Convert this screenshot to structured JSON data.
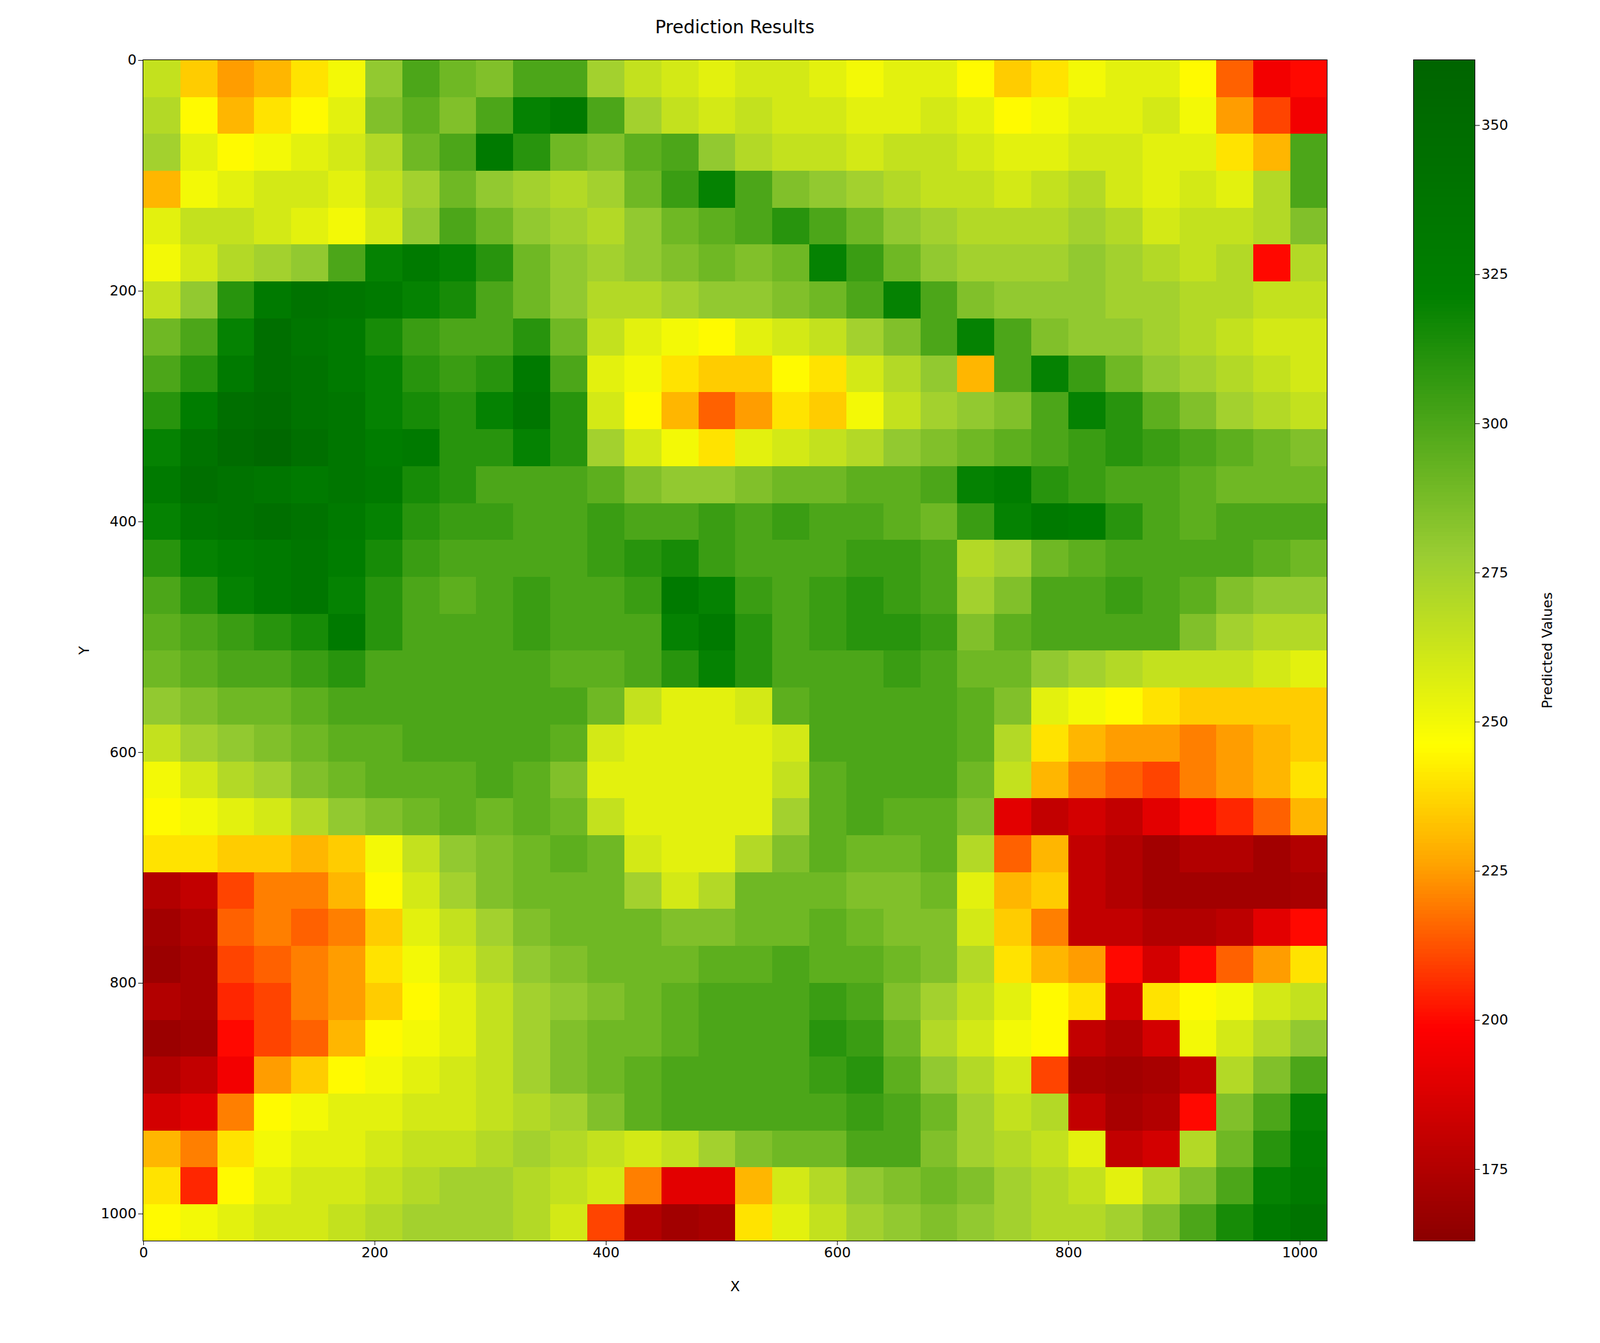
{
  "chart_data": {
    "type": "heatmap",
    "title": "Prediction Results",
    "x_label": "X",
    "y_label": "Y",
    "x": [
      16,
      48,
      80,
      112,
      144,
      176,
      208,
      240,
      272,
      304,
      336,
      368,
      400,
      432,
      464,
      496,
      528,
      560,
      592,
      624,
      656,
      688,
      720,
      752,
      784,
      816,
      848,
      880,
      912,
      944,
      976,
      1008
    ],
    "y": [
      16,
      48,
      80,
      112,
      144,
      176,
      208,
      240,
      272,
      304,
      336,
      368,
      400,
      432,
      464,
      496,
      528,
      560,
      592,
      624,
      656,
      688,
      720,
      752,
      784,
      816,
      848,
      880,
      912,
      944,
      976,
      1008
    ],
    "values": [
      [
        265,
        235,
        225,
        230,
        240,
        250,
        280,
        300,
        290,
        285,
        300,
        300,
        275,
        265,
        260,
        255,
        260,
        260,
        255,
        250,
        255,
        255,
        245,
        235,
        240,
        250,
        255,
        255,
        245,
        215,
        195,
        200
      ],
      [
        270,
        245,
        230,
        240,
        245,
        255,
        285,
        295,
        285,
        300,
        320,
        330,
        300,
        275,
        265,
        260,
        265,
        260,
        260,
        255,
        255,
        260,
        255,
        245,
        250,
        255,
        255,
        260,
        250,
        225,
        210,
        195
      ],
      [
        275,
        255,
        245,
        250,
        255,
        260,
        270,
        290,
        300,
        330,
        310,
        290,
        285,
        295,
        300,
        280,
        270,
        265,
        265,
        260,
        265,
        265,
        260,
        255,
        255,
        260,
        260,
        255,
        255,
        240,
        230,
        300
      ],
      [
        230,
        250,
        255,
        260,
        260,
        255,
        265,
        275,
        290,
        280,
        275,
        270,
        275,
        290,
        305,
        320,
        300,
        285,
        280,
        275,
        270,
        265,
        265,
        260,
        265,
        270,
        260,
        255,
        260,
        255,
        270,
        300
      ],
      [
        255,
        265,
        265,
        260,
        255,
        250,
        260,
        280,
        300,
        290,
        280,
        275,
        270,
        280,
        290,
        295,
        300,
        310,
        300,
        290,
        280,
        275,
        270,
        270,
        270,
        275,
        270,
        260,
        265,
        265,
        270,
        285
      ],
      [
        250,
        260,
        270,
        275,
        280,
        300,
        320,
        330,
        320,
        310,
        290,
        280,
        275,
        280,
        285,
        290,
        285,
        290,
        320,
        305,
        290,
        280,
        275,
        275,
        275,
        280,
        275,
        270,
        265,
        270,
        200,
        270
      ],
      [
        265,
        280,
        310,
        330,
        340,
        335,
        330,
        320,
        315,
        300,
        290,
        280,
        270,
        270,
        275,
        280,
        280,
        285,
        290,
        300,
        320,
        300,
        285,
        280,
        280,
        280,
        275,
        275,
        270,
        270,
        265,
        265
      ],
      [
        290,
        300,
        320,
        345,
        335,
        330,
        315,
        305,
        300,
        300,
        310,
        290,
        265,
        255,
        250,
        245,
        255,
        260,
        265,
        275,
        285,
        300,
        320,
        300,
        285,
        280,
        280,
        275,
        270,
        265,
        260,
        260
      ],
      [
        300,
        310,
        330,
        345,
        340,
        330,
        320,
        310,
        305,
        310,
        330,
        300,
        255,
        250,
        240,
        235,
        235,
        245,
        240,
        260,
        270,
        280,
        230,
        300,
        320,
        305,
        290,
        280,
        275,
        270,
        265,
        260
      ],
      [
        310,
        325,
        345,
        350,
        340,
        335,
        320,
        315,
        310,
        320,
        335,
        310,
        260,
        245,
        230,
        215,
        225,
        240,
        235,
        250,
        265,
        275,
        280,
        285,
        300,
        320,
        310,
        295,
        285,
        275,
        270,
        265
      ],
      [
        320,
        340,
        350,
        355,
        345,
        335,
        325,
        330,
        310,
        310,
        320,
        310,
        275,
        260,
        250,
        240,
        255,
        260,
        265,
        270,
        280,
        285,
        290,
        295,
        300,
        305,
        310,
        305,
        300,
        295,
        290,
        285
      ],
      [
        330,
        345,
        340,
        335,
        330,
        335,
        330,
        315,
        310,
        300,
        300,
        300,
        295,
        285,
        280,
        280,
        285,
        290,
        290,
        295,
        295,
        300,
        320,
        325,
        310,
        305,
        300,
        300,
        295,
        290,
        290,
        290
      ],
      [
        320,
        335,
        340,
        345,
        340,
        330,
        320,
        310,
        305,
        305,
        300,
        300,
        305,
        300,
        300,
        305,
        300,
        305,
        300,
        300,
        295,
        290,
        305,
        320,
        330,
        325,
        310,
        300,
        295,
        300,
        300,
        300
      ],
      [
        310,
        320,
        325,
        330,
        335,
        325,
        315,
        305,
        300,
        300,
        300,
        300,
        305,
        310,
        315,
        305,
        300,
        300,
        300,
        305,
        305,
        300,
        270,
        275,
        290,
        295,
        300,
        300,
        300,
        300,
        295,
        290
      ],
      [
        300,
        310,
        320,
        330,
        335,
        320,
        310,
        300,
        295,
        300,
        305,
        300,
        300,
        305,
        330,
        320,
        305,
        300,
        305,
        310,
        305,
        300,
        275,
        285,
        300,
        300,
        305,
        300,
        295,
        285,
        280,
        280
      ],
      [
        295,
        300,
        305,
        310,
        315,
        330,
        310,
        300,
        300,
        300,
        305,
        300,
        300,
        300,
        320,
        330,
        310,
        300,
        305,
        310,
        310,
        305,
        285,
        295,
        300,
        300,
        300,
        300,
        285,
        275,
        270,
        270
      ],
      [
        290,
        295,
        300,
        300,
        305,
        310,
        300,
        300,
        300,
        300,
        300,
        295,
        295,
        300,
        310,
        320,
        310,
        300,
        300,
        300,
        305,
        300,
        290,
        290,
        280,
        275,
        270,
        265,
        265,
        265,
        260,
        255
      ],
      [
        280,
        285,
        290,
        290,
        295,
        300,
        300,
        300,
        300,
        300,
        300,
        300,
        290,
        265,
        255,
        255,
        260,
        295,
        300,
        300,
        300,
        300,
        295,
        285,
        255,
        250,
        245,
        240,
        235,
        235,
        235,
        235
      ],
      [
        265,
        275,
        280,
        285,
        290,
        295,
        295,
        300,
        300,
        300,
        300,
        295,
        260,
        255,
        255,
        255,
        255,
        260,
        300,
        300,
        300,
        300,
        295,
        270,
        240,
        230,
        225,
        225,
        220,
        225,
        230,
        235
      ],
      [
        250,
        260,
        270,
        275,
        285,
        290,
        295,
        295,
        295,
        300,
        295,
        285,
        255,
        255,
        255,
        255,
        255,
        265,
        295,
        300,
        300,
        300,
        290,
        265,
        230,
        220,
        215,
        210,
        220,
        225,
        230,
        240
      ],
      [
        245,
        250,
        255,
        260,
        270,
        280,
        285,
        290,
        295,
        290,
        295,
        290,
        265,
        255,
        255,
        255,
        255,
        275,
        295,
        300,
        295,
        295,
        285,
        190,
        180,
        185,
        180,
        190,
        200,
        205,
        215,
        230
      ],
      [
        240,
        240,
        235,
        235,
        230,
        235,
        250,
        265,
        280,
        285,
        290,
        295,
        290,
        260,
        255,
        255,
        270,
        285,
        295,
        290,
        290,
        295,
        270,
        215,
        230,
        180,
        175,
        170,
        175,
        175,
        170,
        175
      ],
      [
        175,
        180,
        210,
        220,
        220,
        230,
        245,
        260,
        275,
        285,
        290,
        290,
        290,
        275,
        260,
        270,
        290,
        290,
        290,
        285,
        285,
        290,
        255,
        230,
        235,
        180,
        175,
        170,
        170,
        170,
        170,
        172
      ],
      [
        170,
        175,
        215,
        220,
        215,
        220,
        235,
        255,
        265,
        275,
        285,
        290,
        290,
        290,
        285,
        285,
        290,
        290,
        295,
        290,
        285,
        285,
        260,
        235,
        220,
        180,
        180,
        175,
        175,
        178,
        190,
        200
      ],
      [
        168,
        172,
        210,
        215,
        220,
        225,
        240,
        250,
        260,
        270,
        280,
        285,
        290,
        290,
        290,
        295,
        295,
        300,
        295,
        295,
        290,
        285,
        270,
        240,
        230,
        225,
        200,
        185,
        200,
        215,
        225,
        240
      ],
      [
        175,
        172,
        205,
        210,
        220,
        225,
        235,
        245,
        255,
        265,
        275,
        280,
        285,
        290,
        295,
        300,
        300,
        300,
        305,
        300,
        285,
        275,
        265,
        255,
        245,
        240,
        185,
        240,
        245,
        250,
        260,
        265
      ],
      [
        168,
        170,
        200,
        210,
        215,
        230,
        245,
        250,
        255,
        265,
        275,
        285,
        290,
        290,
        295,
        300,
        300,
        300,
        310,
        305,
        290,
        270,
        260,
        250,
        245,
        180,
        175,
        185,
        250,
        260,
        270,
        280
      ],
      [
        175,
        180,
        195,
        225,
        235,
        245,
        250,
        255,
        260,
        265,
        275,
        285,
        290,
        295,
        300,
        300,
        300,
        300,
        305,
        310,
        295,
        280,
        270,
        260,
        210,
        172,
        170,
        172,
        180,
        270,
        285,
        300
      ],
      [
        185,
        190,
        220,
        245,
        250,
        255,
        255,
        260,
        260,
        265,
        270,
        275,
        285,
        295,
        300,
        300,
        300,
        300,
        300,
        305,
        300,
        290,
        275,
        265,
        270,
        180,
        172,
        175,
        200,
        285,
        300,
        320
      ],
      [
        230,
        220,
        240,
        250,
        255,
        255,
        260,
        265,
        265,
        270,
        275,
        270,
        265,
        260,
        265,
        275,
        285,
        290,
        290,
        300,
        300,
        285,
        275,
        270,
        265,
        255,
        180,
        185,
        270,
        290,
        310,
        325
      ],
      [
        240,
        205,
        245,
        255,
        260,
        260,
        265,
        270,
        275,
        275,
        270,
        265,
        260,
        220,
        190,
        190,
        230,
        260,
        270,
        280,
        285,
        290,
        285,
        275,
        270,
        265,
        255,
        270,
        285,
        300,
        320,
        330
      ],
      [
        245,
        250,
        255,
        260,
        260,
        265,
        270,
        275,
        275,
        275,
        270,
        260,
        210,
        175,
        170,
        172,
        240,
        255,
        265,
        275,
        280,
        285,
        280,
        275,
        270,
        270,
        275,
        285,
        300,
        315,
        330,
        340
      ]
    ],
    "xlim": [
      -0.5,
      1023.5
    ],
    "ylim": [
      1023.5,
      -0.5
    ],
    "xticks": [
      0,
      200,
      400,
      600,
      800,
      1000
    ],
    "yticks": [
      0,
      200,
      400,
      600,
      800,
      1000
    ],
    "colorbar_label": "Predicted Values",
    "colorbar_range": [
      163,
      361
    ],
    "colorbar_ticks": [
      175,
      200,
      225,
      250,
      275,
      300,
      325,
      350
    ]
  }
}
